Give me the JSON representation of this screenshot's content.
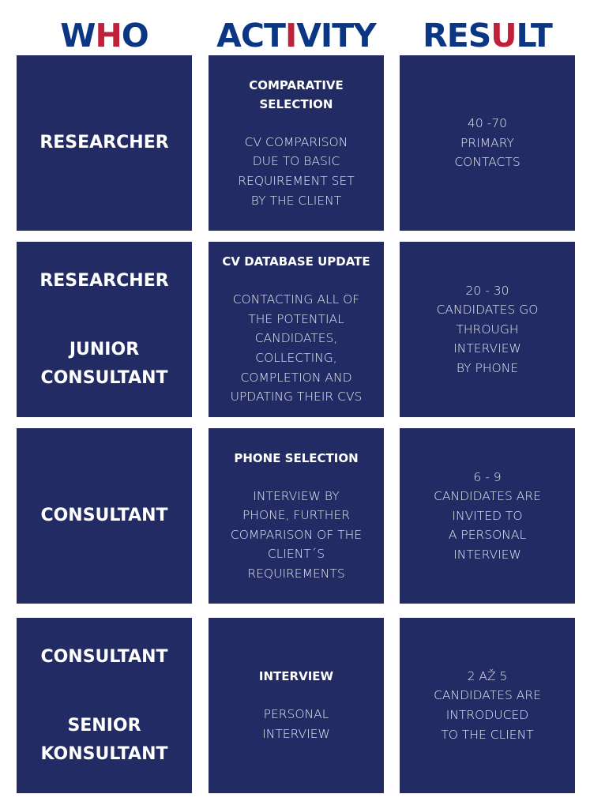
{
  "headers": [
    {
      "pre": "W",
      "hl": "H",
      "post": "O"
    },
    {
      "pre": "ACTI",
      "hl": "I",
      "post": "VITY"
    },
    {
      "pre": "RES",
      "hl": "U",
      "post": "LT"
    }
  ],
  "colors": {
    "box": "#222b63",
    "heading": "#0b3683",
    "heading_accent": "#c0203a"
  },
  "rows": [
    {
      "who": [
        [
          "RESEARCHER"
        ]
      ],
      "activity": {
        "title": [
          "COMPARATIVE",
          "SELECTION"
        ],
        "desc": [
          "CV COMPARISON",
          "DUE TO BASIC",
          "REQUIREMENT SET",
          "BY THE CLIENT"
        ]
      },
      "result": [
        "40 -70",
        "PRIMARY",
        "CONTACTS"
      ]
    },
    {
      "who": [
        [
          "RESEARCHER"
        ],
        [
          "JUNIOR",
          "CONSULTANT"
        ]
      ],
      "activity": {
        "title": [
          "CV DATABASE UPDATE"
        ],
        "desc": [
          "CONTACTING ALL OF",
          "THE POTENTIAL",
          "CANDIDATES,",
          "COLLECTING,",
          "COMPLETION AND",
          "UPDATING THEIR CVS"
        ]
      },
      "result": [
        "20 - 30",
        "CANDIDATES GO",
        "THROUGH",
        "INTERVIEW",
        "BY PHONE"
      ]
    },
    {
      "who": [
        [
          "CONSULTANT"
        ]
      ],
      "activity": {
        "title": [
          "PHONE SELECTION"
        ],
        "desc": [
          "INTERVIEW BY",
          "PHONE, FURTHER",
          "COMPARISON OF THE",
          "CLIENT´S",
          "REQUIREMENTS"
        ]
      },
      "result": [
        "6 - 9",
        "CANDIDATES ARE",
        "INVITED TO",
        "A PERSONAL",
        "INTERVIEW"
      ]
    },
    {
      "who": [
        [
          "CONSULTANT"
        ],
        [
          "SENIOR",
          "KONSULTANT"
        ]
      ],
      "activity": {
        "title": [
          "INTERVIEW"
        ],
        "desc": [
          "PERSONAL",
          "INTERVIEW"
        ]
      },
      "result": [
        "2 AŽ 5",
        "CANDIDATES ARE",
        "INTRODUCED",
        "TO THE CLIENT"
      ]
    }
  ]
}
